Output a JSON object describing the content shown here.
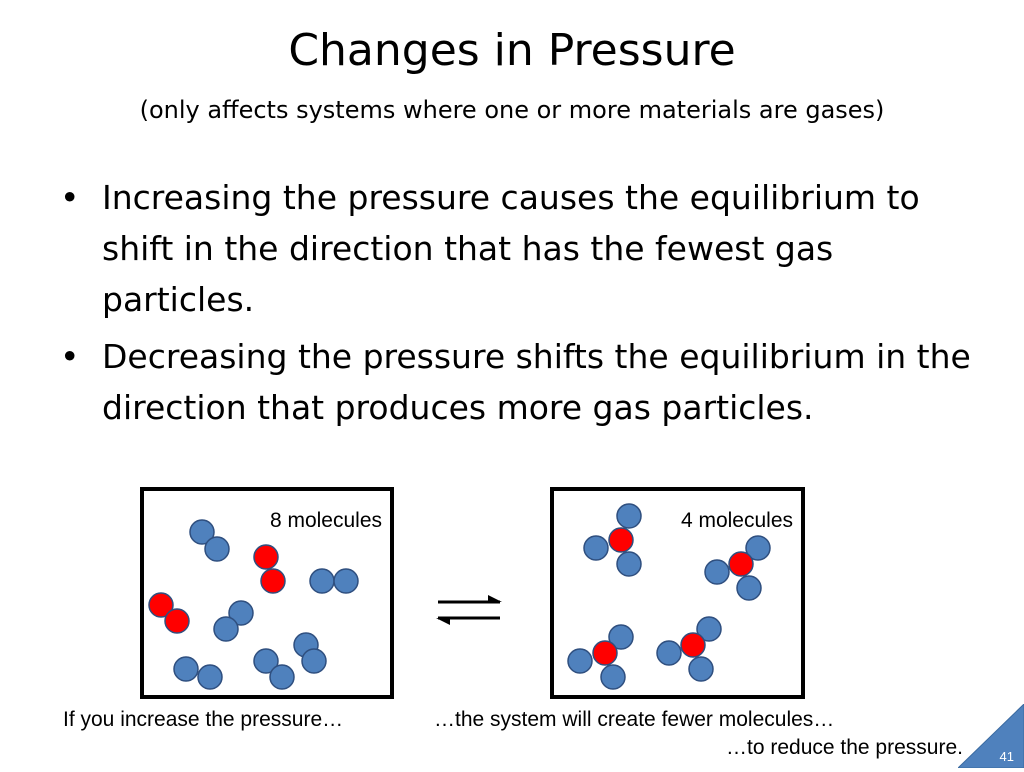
{
  "slide": {
    "title": "Changes in Pressure",
    "subtitle": "(only affects systems where one or more materials are gases)",
    "bullet_symbol": "•",
    "bullets": [
      "Increasing the pressure causes the equilibrium to shift in the direction that has the fewest gas particles.",
      "Decreasing the pressure shifts the equilibrium in the direction that produces more gas particles."
    ]
  },
  "diagram": {
    "left_label": "8 molecules",
    "right_label": "4 molecules",
    "colors": {
      "blue": "#4f81bd",
      "red": "#ff0000",
      "outline": "#2f4f7f"
    }
  },
  "captions": {
    "left": "If you increase the pressure…",
    "middle": "…the system will create fewer molecules…",
    "right": "…to reduce the pressure."
  },
  "page_number": "41",
  "corner_color": "#4f81bd"
}
